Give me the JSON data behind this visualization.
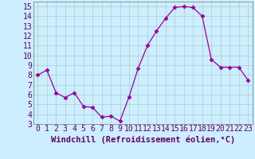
{
  "x": [
    0,
    1,
    2,
    3,
    4,
    5,
    6,
    7,
    8,
    9,
    10,
    11,
    12,
    13,
    14,
    15,
    16,
    17,
    18,
    19,
    20,
    21,
    22,
    23
  ],
  "y": [
    8.0,
    8.5,
    6.2,
    5.7,
    6.2,
    4.8,
    4.7,
    3.7,
    3.8,
    3.3,
    5.8,
    8.7,
    11.0,
    12.5,
    13.8,
    14.9,
    15.0,
    14.9,
    14.0,
    9.6,
    8.8,
    8.8,
    8.8,
    7.5
  ],
  "line_color": "#990099",
  "marker": "D",
  "marker_size": 2.5,
  "bg_color": "#cceeff",
  "grid_color": "#aacccc",
  "xlabel": "Windchill (Refroidissement éolien,°C)",
  "xlabel_color": "#660066",
  "xlabel_fontsize": 7.5,
  "xlim": [
    -0.5,
    23.5
  ],
  "ylim": [
    3,
    15.5
  ],
  "yticks": [
    3,
    4,
    5,
    6,
    7,
    8,
    9,
    10,
    11,
    12,
    13,
    14,
    15
  ],
  "xticks": [
    0,
    1,
    2,
    3,
    4,
    5,
    6,
    7,
    8,
    9,
    10,
    11,
    12,
    13,
    14,
    15,
    16,
    17,
    18,
    19,
    20,
    21,
    22,
    23
  ],
  "tick_color": "#660066",
  "tick_fontsize": 7,
  "spine_color": "#888888"
}
